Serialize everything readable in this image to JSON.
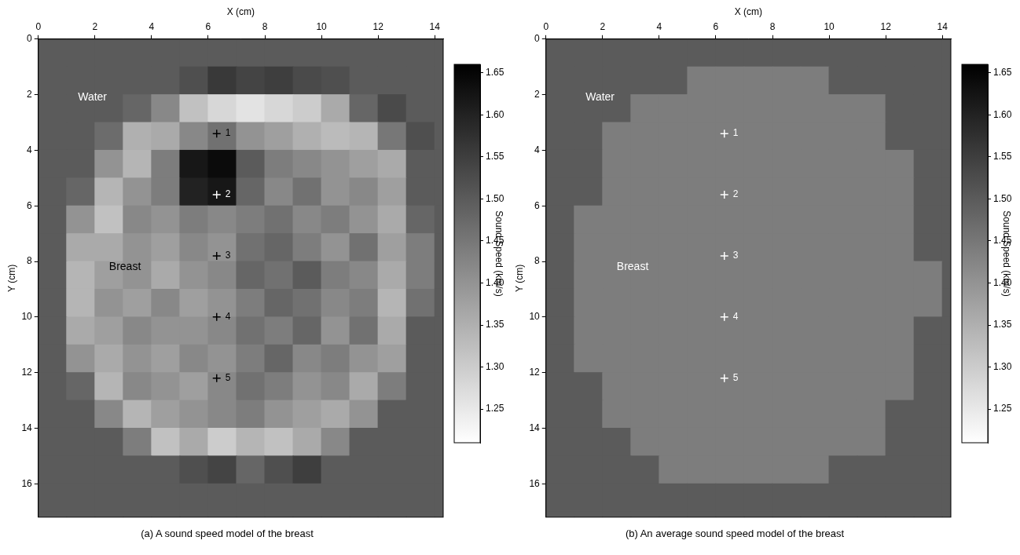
{
  "chart_data": [
    {
      "type": "heatmap",
      "caption": "(a) A sound speed model of the breast",
      "x_label": "X (cm)",
      "y_label": "Y (cm)",
      "xlim": [
        0,
        14.3
      ],
      "ylim": [
        17.2,
        0
      ],
      "xticks": [
        0,
        2,
        4,
        6,
        8,
        10,
        12,
        14
      ],
      "yticks": [
        0,
        2,
        4,
        6,
        8,
        10,
        12,
        14,
        16
      ],
      "grid": false,
      "cell_x": [
        0.5,
        1.5,
        2.5,
        3.5,
        4.5,
        5.5,
        6.5,
        7.5,
        8.5,
        9.5,
        10.5,
        11.5,
        12.5,
        13.5,
        14.5
      ],
      "cell_y": [
        0.5,
        1.5,
        2.5,
        3.5,
        4.5,
        5.5,
        6.5,
        7.5,
        8.5,
        9.5,
        10.5,
        11.5,
        12.5,
        13.5,
        14.5,
        15.5,
        16.5,
        17.5
      ],
      "cells": [
        [
          1.5,
          1.5,
          1.5,
          1.5,
          1.5,
          1.5,
          1.5,
          1.5,
          1.5,
          1.5,
          1.5,
          1.5,
          1.5,
          1.5,
          1.5
        ],
        [
          1.5,
          1.5,
          1.5,
          1.5,
          1.5,
          1.52,
          1.56,
          1.54,
          1.55,
          1.53,
          1.52,
          1.5,
          1.5,
          1.5,
          1.5
        ],
        [
          1.5,
          1.5,
          1.5,
          1.48,
          1.42,
          1.32,
          1.28,
          1.26,
          1.28,
          1.3,
          1.36,
          1.48,
          1.53,
          1.5,
          1.5
        ],
        [
          1.5,
          1.5,
          1.47,
          1.35,
          1.36,
          1.42,
          1.46,
          1.4,
          1.38,
          1.35,
          1.33,
          1.34,
          1.45,
          1.52,
          1.5
        ],
        [
          1.5,
          1.5,
          1.4,
          1.34,
          1.44,
          1.62,
          1.64,
          1.5,
          1.44,
          1.42,
          1.4,
          1.38,
          1.36,
          1.5,
          1.5
        ],
        [
          1.5,
          1.48,
          1.34,
          1.4,
          1.44,
          1.6,
          1.62,
          1.48,
          1.42,
          1.46,
          1.4,
          1.42,
          1.38,
          1.5,
          1.5
        ],
        [
          1.5,
          1.4,
          1.32,
          1.42,
          1.4,
          1.44,
          1.42,
          1.44,
          1.46,
          1.42,
          1.44,
          1.4,
          1.36,
          1.48,
          1.5
        ],
        [
          1.5,
          1.36,
          1.36,
          1.4,
          1.38,
          1.42,
          1.4,
          1.46,
          1.48,
          1.44,
          1.4,
          1.46,
          1.38,
          1.44,
          1.5
        ],
        [
          1.5,
          1.34,
          1.38,
          1.4,
          1.36,
          1.4,
          1.42,
          1.48,
          1.46,
          1.5,
          1.44,
          1.42,
          1.36,
          1.44,
          1.5
        ],
        [
          1.5,
          1.34,
          1.4,
          1.38,
          1.42,
          1.38,
          1.4,
          1.44,
          1.48,
          1.46,
          1.42,
          1.44,
          1.34,
          1.46,
          1.5
        ],
        [
          1.5,
          1.36,
          1.38,
          1.42,
          1.4,
          1.4,
          1.42,
          1.46,
          1.44,
          1.48,
          1.4,
          1.46,
          1.36,
          1.5,
          1.5
        ],
        [
          1.5,
          1.4,
          1.36,
          1.4,
          1.38,
          1.42,
          1.4,
          1.44,
          1.48,
          1.42,
          1.44,
          1.4,
          1.38,
          1.5,
          1.5
        ],
        [
          1.5,
          1.48,
          1.34,
          1.42,
          1.4,
          1.38,
          1.42,
          1.46,
          1.44,
          1.4,
          1.42,
          1.36,
          1.44,
          1.5,
          1.5
        ],
        [
          1.5,
          1.5,
          1.42,
          1.34,
          1.38,
          1.4,
          1.42,
          1.44,
          1.4,
          1.38,
          1.36,
          1.4,
          1.5,
          1.5,
          1.5
        ],
        [
          1.5,
          1.5,
          1.5,
          1.44,
          1.32,
          1.36,
          1.3,
          1.34,
          1.32,
          1.36,
          1.42,
          1.5,
          1.5,
          1.5,
          1.5
        ],
        [
          1.5,
          1.5,
          1.5,
          1.5,
          1.5,
          1.52,
          1.54,
          1.48,
          1.52,
          1.55,
          1.5,
          1.5,
          1.5,
          1.5,
          1.5
        ],
        [
          1.5,
          1.5,
          1.5,
          1.5,
          1.5,
          1.5,
          1.5,
          1.5,
          1.5,
          1.5,
          1.5,
          1.5,
          1.5,
          1.5,
          1.5
        ],
        [
          1.5,
          1.5,
          1.5,
          1.5,
          1.5,
          1.5,
          1.5,
          1.5,
          1.5,
          1.5,
          1.5,
          1.5,
          1.5,
          1.5,
          1.5
        ]
      ],
      "colorbar": {
        "label": "Sound Speed (km/s)",
        "range": [
          1.21,
          1.66
        ],
        "ticks": [
          1.25,
          {
            "value": 1.3,
            "label": "1.30"
          },
          1.35,
          {
            "value": 1.4,
            "label": "1.40"
          },
          1.45,
          {
            "value": 1.5,
            "label": "1.50"
          },
          1.55,
          {
            "value": 1.6,
            "label": "1.60"
          },
          1.65
        ]
      },
      "markers": {
        "marker": "cross",
        "x": [
          6.3,
          6.3,
          6.3,
          6.3,
          6.3
        ],
        "y": [
          3.4,
          5.6,
          7.8,
          10.0,
          12.2
        ],
        "labels": [
          "1",
          "2",
          "3",
          "4",
          "5"
        ],
        "colors": [
          "#000000",
          "#ffffff",
          "#000000",
          "#000000",
          "#000000"
        ]
      },
      "annotations": [
        {
          "text": "Water",
          "x": 1.4,
          "y": 2.1,
          "color": "#ffffff"
        },
        {
          "text": "Breast",
          "x": 2.5,
          "y": 8.2,
          "color": "#000000"
        }
      ]
    },
    {
      "type": "heatmap",
      "caption": "(b) An average sound speed model of the breast",
      "x_label": "X (cm)",
      "y_label": "Y (cm)",
      "xlim": [
        0,
        14.3
      ],
      "ylim": [
        17.2,
        0
      ],
      "xticks": [
        0,
        2,
        4,
        6,
        8,
        10,
        12,
        14
      ],
      "yticks": [
        0,
        2,
        4,
        6,
        8,
        10,
        12,
        14,
        16
      ],
      "grid": false,
      "cell_x": [
        0.5,
        1.5,
        2.5,
        3.5,
        4.5,
        5.5,
        6.5,
        7.5,
        8.5,
        9.5,
        10.5,
        11.5,
        12.5,
        13.5,
        14.5
      ],
      "cell_y": [
        0.5,
        1.5,
        2.5,
        3.5,
        4.5,
        5.5,
        6.5,
        7.5,
        8.5,
        9.5,
        10.5,
        11.5,
        12.5,
        13.5,
        14.5,
        15.5,
        16.5,
        17.5
      ],
      "cells": [
        [
          1.5,
          1.5,
          1.5,
          1.5,
          1.5,
          1.5,
          1.5,
          1.5,
          1.5,
          1.5,
          1.5,
          1.5,
          1.5,
          1.5,
          1.5
        ],
        [
          1.5,
          1.5,
          1.5,
          1.5,
          1.5,
          1.44,
          1.44,
          1.44,
          1.44,
          1.44,
          1.5,
          1.5,
          1.5,
          1.5,
          1.5
        ],
        [
          1.5,
          1.5,
          1.5,
          1.44,
          1.44,
          1.44,
          1.44,
          1.44,
          1.44,
          1.44,
          1.44,
          1.44,
          1.5,
          1.5,
          1.5
        ],
        [
          1.5,
          1.5,
          1.44,
          1.44,
          1.44,
          1.44,
          1.44,
          1.44,
          1.44,
          1.44,
          1.44,
          1.44,
          1.5,
          1.5,
          1.5
        ],
        [
          1.5,
          1.5,
          1.44,
          1.44,
          1.44,
          1.44,
          1.44,
          1.44,
          1.44,
          1.44,
          1.44,
          1.44,
          1.44,
          1.5,
          1.5
        ],
        [
          1.5,
          1.5,
          1.44,
          1.44,
          1.44,
          1.44,
          1.44,
          1.44,
          1.44,
          1.44,
          1.44,
          1.44,
          1.44,
          1.5,
          1.5
        ],
        [
          1.5,
          1.44,
          1.44,
          1.44,
          1.44,
          1.44,
          1.44,
          1.44,
          1.44,
          1.44,
          1.44,
          1.44,
          1.44,
          1.5,
          1.5
        ],
        [
          1.5,
          1.44,
          1.44,
          1.44,
          1.44,
          1.44,
          1.44,
          1.44,
          1.44,
          1.44,
          1.44,
          1.44,
          1.44,
          1.5,
          1.5
        ],
        [
          1.5,
          1.44,
          1.44,
          1.44,
          1.44,
          1.44,
          1.44,
          1.44,
          1.44,
          1.44,
          1.44,
          1.44,
          1.44,
          1.44,
          1.5
        ],
        [
          1.5,
          1.44,
          1.44,
          1.44,
          1.44,
          1.44,
          1.44,
          1.44,
          1.44,
          1.44,
          1.44,
          1.44,
          1.44,
          1.44,
          1.5
        ],
        [
          1.5,
          1.44,
          1.44,
          1.44,
          1.44,
          1.44,
          1.44,
          1.44,
          1.44,
          1.44,
          1.44,
          1.44,
          1.44,
          1.5,
          1.5
        ],
        [
          1.5,
          1.44,
          1.44,
          1.44,
          1.44,
          1.44,
          1.44,
          1.44,
          1.44,
          1.44,
          1.44,
          1.44,
          1.44,
          1.5,
          1.5
        ],
        [
          1.5,
          1.5,
          1.44,
          1.44,
          1.44,
          1.44,
          1.44,
          1.44,
          1.44,
          1.44,
          1.44,
          1.44,
          1.44,
          1.5,
          1.5
        ],
        [
          1.5,
          1.5,
          1.44,
          1.44,
          1.44,
          1.44,
          1.44,
          1.44,
          1.44,
          1.44,
          1.44,
          1.44,
          1.5,
          1.5,
          1.5
        ],
        [
          1.5,
          1.5,
          1.5,
          1.44,
          1.44,
          1.44,
          1.44,
          1.44,
          1.44,
          1.44,
          1.44,
          1.44,
          1.5,
          1.5,
          1.5
        ],
        [
          1.5,
          1.5,
          1.5,
          1.5,
          1.44,
          1.44,
          1.44,
          1.44,
          1.44,
          1.44,
          1.5,
          1.5,
          1.5,
          1.5,
          1.5
        ],
        [
          1.5,
          1.5,
          1.5,
          1.5,
          1.5,
          1.5,
          1.5,
          1.5,
          1.5,
          1.5,
          1.5,
          1.5,
          1.5,
          1.5,
          1.5
        ],
        [
          1.5,
          1.5,
          1.5,
          1.5,
          1.5,
          1.5,
          1.5,
          1.5,
          1.5,
          1.5,
          1.5,
          1.5,
          1.5,
          1.5,
          1.5
        ]
      ],
      "colorbar": {
        "label": "Sound Speed (km/s)",
        "range": [
          1.21,
          1.66
        ],
        "ticks": [
          1.25,
          {
            "value": 1.3,
            "label": "1.30"
          },
          1.35,
          {
            "value": 1.4,
            "label": "1.40"
          },
          1.45,
          {
            "value": 1.5,
            "label": "1.50"
          },
          1.55,
          {
            "value": 1.6,
            "label": "1.60"
          },
          1.65
        ]
      },
      "markers": {
        "marker": "cross",
        "x": [
          6.3,
          6.3,
          6.3,
          6.3,
          6.3
        ],
        "y": [
          3.4,
          5.6,
          7.8,
          10.0,
          12.2
        ],
        "labels": [
          "1",
          "2",
          "3",
          "4",
          "5"
        ],
        "colors": [
          "#ffffff",
          "#ffffff",
          "#ffffff",
          "#ffffff",
          "#ffffff"
        ]
      },
      "annotations": [
        {
          "text": "Water",
          "x": 1.4,
          "y": 2.1,
          "color": "#ffffff"
        },
        {
          "text": "Breast",
          "x": 2.5,
          "y": 8.2,
          "color": "#ffffff"
        }
      ]
    }
  ]
}
